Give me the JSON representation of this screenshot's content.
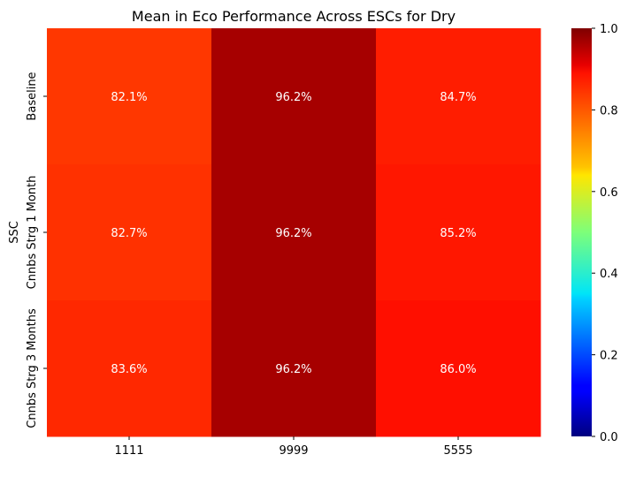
{
  "chart_data": {
    "type": "heatmap",
    "title": "Mean in Eco Performance Across ESCs for Dry",
    "xlabel": "",
    "ylabel": "SSC",
    "x_categories": [
      "1111",
      "9999",
      "5555"
    ],
    "y_categories": [
      "Baseline",
      "Cnnbs Strg 1 Month",
      "Cnnbs Strg 3 Months"
    ],
    "values": [
      [
        0.821,
        0.962,
        0.847
      ],
      [
        0.827,
        0.962,
        0.852
      ],
      [
        0.836,
        0.962,
        0.86
      ]
    ],
    "annotations": [
      [
        "82.1%",
        "96.2%",
        "84.7%"
      ],
      [
        "82.7%",
        "96.2%",
        "85.2%"
      ],
      [
        "83.6%",
        "96.2%",
        "86.0%"
      ]
    ],
    "colormap": "jet",
    "colorbar": {
      "vmin": 0.0,
      "vmax": 1.0,
      "ticks": [
        "0.0",
        "0.2",
        "0.4",
        "0.6",
        "0.8",
        "1.0"
      ]
    }
  }
}
